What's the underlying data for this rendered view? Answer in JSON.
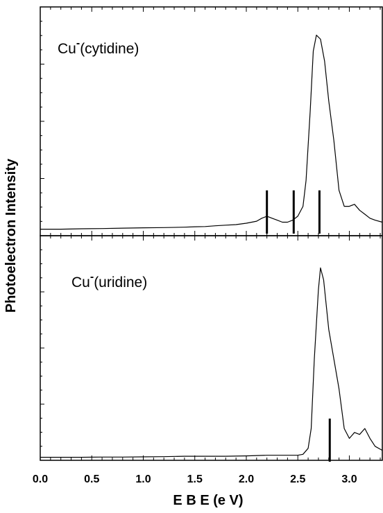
{
  "chart_data": {
    "type": "line",
    "xlabel": "E B E  (e V)",
    "ylabel": "Photoelectron  Intensity",
    "xlim": [
      0.0,
      3.32
    ],
    "x_ticks": [
      "0.0",
      "0.5",
      "1.0",
      "1.5",
      "2.0",
      "2.5",
      "3.0"
    ],
    "x_tick_values": [
      0.0,
      0.5,
      1.0,
      1.5,
      2.0,
      2.5,
      3.0
    ],
    "y_tick_labels_shown": false,
    "panels": [
      {
        "label_main": "Cu",
        "label_sup": "-",
        "label_rest": "(cytidine)",
        "ylim": [
          0,
          1
        ],
        "series": [
          {
            "x": [
              0.0,
              0.2,
              0.4,
              0.6,
              0.8,
              1.0,
              1.2,
              1.4,
              1.5,
              1.6,
              1.7,
              1.8,
              1.9,
              2.0,
              2.1,
              2.15,
              2.2,
              2.25,
              2.3,
              2.35,
              2.4,
              2.45,
              2.5,
              2.55,
              2.58,
              2.62,
              2.65,
              2.68,
              2.72,
              2.76,
              2.8,
              2.85,
              2.9,
              2.95,
              3.0,
              3.05,
              3.1,
              3.15,
              3.2,
              3.25,
              3.32
            ],
            "y": [
              0.005,
              0.005,
              0.007,
              0.008,
              0.01,
              0.012,
              0.013,
              0.015,
              0.017,
              0.018,
              0.022,
              0.025,
              0.028,
              0.035,
              0.045,
              0.06,
              0.07,
              0.06,
              0.05,
              0.04,
              0.04,
              0.05,
              0.07,
              0.12,
              0.25,
              0.6,
              0.9,
              0.98,
              0.96,
              0.85,
              0.65,
              0.45,
              0.2,
              0.12,
              0.12,
              0.13,
              0.1,
              0.08,
              0.06,
              0.05,
              0.04
            ]
          }
        ],
        "stick_lines": [
          {
            "x": 2.2,
            "height": 0.2
          },
          {
            "x": 2.46,
            "height": 0.2
          },
          {
            "x": 2.71,
            "height": 0.2
          }
        ]
      },
      {
        "label_main": "Cu",
        "label_sup": "-",
        "label_rest": "(uridine)",
        "ylim": [
          0,
          1
        ],
        "series": [
          {
            "x": [
              0.0,
              0.2,
              0.4,
              0.6,
              0.8,
              1.0,
              1.2,
              1.4,
              1.6,
              1.8,
              2.0,
              2.2,
              2.4,
              2.5,
              2.55,
              2.6,
              2.63,
              2.66,
              2.7,
              2.72,
              2.75,
              2.8,
              2.85,
              2.9,
              2.95,
              3.0,
              3.05,
              3.1,
              3.15,
              3.2,
              3.25,
              3.32
            ],
            "y": [
              0.005,
              0.005,
              0.005,
              0.006,
              0.006,
              0.007,
              0.008,
              0.01,
              0.01,
              0.01,
              0.012,
              0.015,
              0.015,
              0.015,
              0.02,
              0.05,
              0.15,
              0.5,
              0.85,
              0.96,
              0.9,
              0.65,
              0.5,
              0.35,
              0.15,
              0.1,
              0.13,
              0.12,
              0.15,
              0.1,
              0.06,
              0.04
            ]
          }
        ],
        "stick_lines": [
          {
            "x": 2.81,
            "height": 0.2
          }
        ]
      }
    ]
  }
}
